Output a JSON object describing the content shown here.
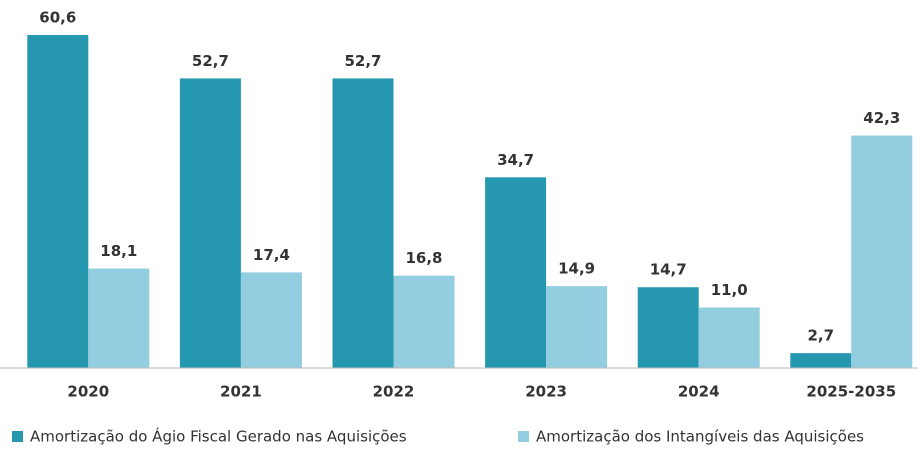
{
  "chart_data": {
    "type": "bar",
    "categories": [
      "2020",
      "2021",
      "2022",
      "2023",
      "2024",
      "2025-2035"
    ],
    "series": [
      {
        "name": "Amortização do Ágio Fiscal Gerado nas Aquisições",
        "color": "#2598b0",
        "values": [
          60.6,
          52.7,
          52.7,
          34.7,
          14.7,
          2.7
        ],
        "value_labels": [
          "60,6",
          "52,7",
          "52,7",
          "34,7",
          "14,7",
          "2,7"
        ]
      },
      {
        "name": "Amortização dos Intangíveis das Aquisições",
        "color": "#93cde0",
        "values": [
          18.1,
          17.4,
          16.8,
          14.9,
          11.0,
          42.3
        ],
        "value_labels": [
          "18,1",
          "17,4",
          "16,8",
          "14,9",
          "11,0",
          "42,3"
        ]
      }
    ]
  }
}
